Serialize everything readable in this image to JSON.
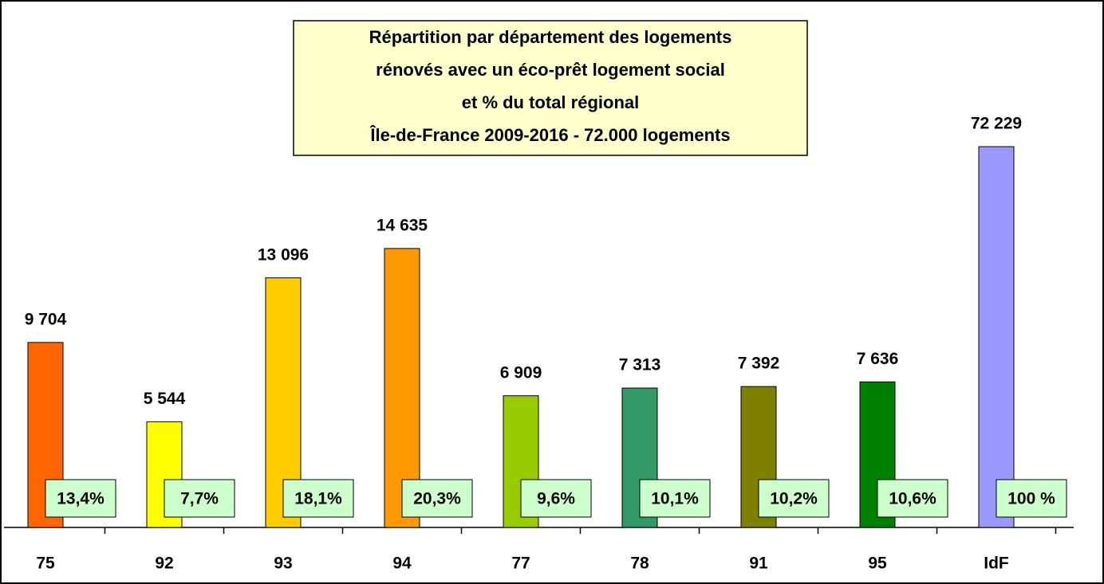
{
  "chart_data": [
    {
      "type": "bar",
      "title": [
        "Répartition par département des logements",
        "rénovés avec un éco-prêt logement social",
        "et %  du total régional",
        "Île-de-France 2009-2016 - 72.000 logements"
      ],
      "categories": [
        "75",
        "92",
        "93",
        "94",
        "77",
        "78",
        "91",
        "95"
      ],
      "values": [
        9704,
        5544,
        13096,
        14635,
        6909,
        7313,
        7392,
        7636
      ],
      "value_labels": [
        "9 704",
        "5 544",
        "13 096",
        "14 635",
        "6 909",
        "7 313",
        "7 392",
        "7 636"
      ],
      "shares": [
        13.4,
        7.7,
        18.1,
        20.3,
        9.6,
        10.1,
        10.2,
        10.6
      ],
      "share_labels": [
        "13,4%",
        "7,7%",
        "18,1%",
        "20,3%",
        "9,6%",
        "10,1%",
        "10,2%",
        "10,6%"
      ],
      "colors": [
        "#ff6600",
        "#ffff00",
        "#ffcc00",
        "#ff9900",
        "#99cc00",
        "#339966",
        "#808000",
        "#008000"
      ],
      "ylim": [
        0,
        26000
      ]
    },
    {
      "type": "bar",
      "categories": [
        "IdF"
      ],
      "values": [
        72229
      ],
      "value_labels": [
        "72 229"
      ],
      "shares": [
        100
      ],
      "share_labels": [
        "100 %"
      ],
      "colors": [
        "#9999ff"
      ],
      "ylim": [
        0,
        94000
      ]
    }
  ]
}
